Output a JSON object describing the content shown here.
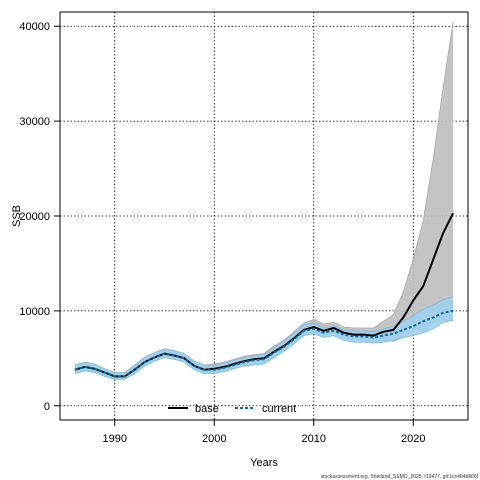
{
  "chart_data": {
    "type": "line",
    "xlabel": "Years",
    "ylabel": "SSB",
    "xlim": [
      1984.5,
      2025.5
    ],
    "ylim": [
      -1500,
      41500
    ],
    "xticks": [
      1990,
      2000,
      2010,
      2020
    ],
    "yticks": [
      0,
      10000,
      20000,
      30000,
      40000
    ],
    "grid": true,
    "legend_position": "bottom-left",
    "footer": "stockassessment.org, Shetland_SSMO_2025, r19477, git:1cc464b806f",
    "x": [
      1986,
      1987,
      1988,
      1989,
      1990,
      1991,
      1992,
      1993,
      1994,
      1995,
      1996,
      1997,
      1998,
      1999,
      2000,
      2001,
      2002,
      2003,
      2004,
      2005,
      2006,
      2007,
      2008,
      2009,
      2010,
      2011,
      2012,
      2013,
      2014,
      2015,
      2016,
      2017,
      2018,
      2019,
      2020,
      2021,
      2022,
      2023,
      2024
    ],
    "series": [
      {
        "name": "base",
        "color": "#000000",
        "band_color": "#bebebe",
        "style": "solid",
        "values": [
          3800,
          4100,
          3900,
          3500,
          3100,
          3100,
          3800,
          4600,
          5100,
          5500,
          5300,
          5000,
          4200,
          3800,
          3900,
          4100,
          4400,
          4700,
          4900,
          5000,
          5700,
          6300,
          7100,
          8000,
          8300,
          7900,
          8200,
          7700,
          7500,
          7500,
          7400,
          7800,
          8000,
          9300,
          11100,
          12600,
          15400,
          18200,
          20300
        ],
        "band_lower": [
          3400,
          3700,
          3500,
          3100,
          2800,
          2800,
          3400,
          4200,
          4700,
          5100,
          4900,
          4600,
          3800,
          3400,
          3500,
          3700,
          4000,
          4300,
          4400,
          4500,
          5200,
          5800,
          6600,
          7500,
          7800,
          7400,
          7600,
          7100,
          6900,
          6900,
          6700,
          6900,
          6800,
          7200,
          8000,
          8000,
          8700,
          9000,
          9000
        ],
        "band_upper": [
          4300,
          4600,
          4400,
          3900,
          3500,
          3500,
          4300,
          5100,
          5600,
          6000,
          5800,
          5500,
          4700,
          4300,
          4400,
          4600,
          4900,
          5200,
          5400,
          5500,
          6300,
          6900,
          7800,
          8700,
          9100,
          8600,
          8800,
          8300,
          8200,
          8200,
          8200,
          8900,
          9600,
          12000,
          15500,
          19500,
          26000,
          33500,
          40500
        ]
      },
      {
        "name": "current",
        "color": "#0c6e9c",
        "band_color": "#a0d0ec",
        "style": "dashed",
        "values": [
          3800,
          4100,
          3900,
          3500,
          3100,
          3100,
          3800,
          4600,
          5100,
          5500,
          5300,
          5000,
          4200,
          3800,
          3800,
          4000,
          4300,
          4600,
          4800,
          4900,
          5600,
          6200,
          7000,
          7900,
          8100,
          7700,
          7900,
          7500,
          7300,
          7300,
          7200,
          7400,
          7600,
          8000,
          8400,
          8900,
          9300,
          9800,
          10000
        ],
        "band_lower": [
          3400,
          3700,
          3500,
          3100,
          2800,
          2800,
          3400,
          4200,
          4700,
          5100,
          4900,
          4600,
          3800,
          3400,
          3400,
          3600,
          3900,
          4200,
          4300,
          4400,
          5100,
          5700,
          6500,
          7400,
          7600,
          7200,
          7400,
          6900,
          6700,
          6700,
          6600,
          6700,
          6900,
          7200,
          7400,
          7700,
          8100,
          8800,
          9000
        ],
        "band_upper": [
          4300,
          4600,
          4400,
          3900,
          3500,
          3500,
          4300,
          5100,
          5600,
          6000,
          5800,
          5500,
          4700,
          4300,
          4200,
          4500,
          4800,
          5100,
          5300,
          5400,
          6100,
          6800,
          7600,
          8500,
          8700,
          8200,
          8400,
          8000,
          7900,
          7900,
          7800,
          8100,
          8400,
          8900,
          9500,
          10200,
          10600,
          11200,
          11500
        ]
      }
    ]
  }
}
